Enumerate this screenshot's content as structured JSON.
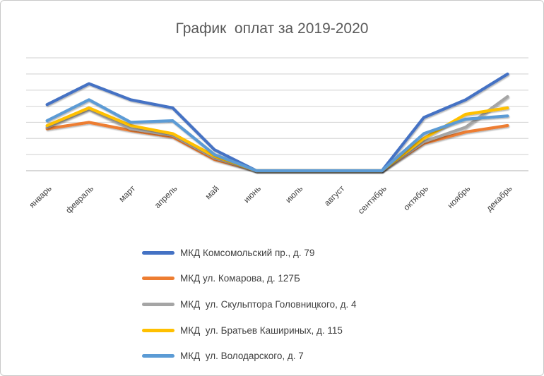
{
  "frame": {
    "background": "#ffffff",
    "border_color": "#c9c9c9"
  },
  "chart_data": {
    "type": "line",
    "title": "График  оплат за 2019-2020",
    "title_color": "#595959",
    "categories": [
      "январь",
      "февраль",
      "март",
      "апрель",
      "май",
      "июнь",
      "июль",
      "август",
      "сентябрь",
      "октябрь",
      "ноябрь",
      "декабрь"
    ],
    "series": [
      {
        "name": "МКД Комсомольский пр., д. 79",
        "color": "#4472C4",
        "values": [
          4.1,
          5.4,
          4.4,
          3.9,
          1.3,
          0,
          0,
          0,
          0,
          3.3,
          4.4,
          6.0
        ]
      },
      {
        "name": "МКД ул. Комарова, д. 127Б",
        "color": "#ED7D31",
        "values": [
          2.6,
          3.0,
          2.5,
          2.1,
          0.7,
          0,
          0,
          0,
          0,
          1.7,
          2.4,
          2.8
        ]
      },
      {
        "name": "МКД  ул. Скульптора Головницкого, д. 4",
        "color": "#A5A5A5",
        "values": [
          2.7,
          3.8,
          2.6,
          2.2,
          0.8,
          0,
          0,
          0,
          0,
          1.8,
          2.7,
          4.6
        ]
      },
      {
        "name": "МКД  ул. Братьев Кашириных, д. 115",
        "color": "#FFC000",
        "values": [
          2.8,
          3.9,
          2.8,
          2.3,
          0.9,
          0,
          0,
          0,
          0,
          2.0,
          3.5,
          3.9
        ]
      },
      {
        "name": "МКД  ул. Володарского, д. 7",
        "color": "#5B9BD5",
        "values": [
          3.1,
          4.4,
          3.0,
          3.1,
          1.0,
          0,
          0,
          0,
          0,
          2.3,
          3.2,
          3.4
        ]
      }
    ],
    "ylim": [
      0,
      7
    ],
    "y_axis_labels_visible": false,
    "gridlines": "horizontal, 1 unit apart",
    "gridline_color": "#d9d9d9",
    "axis_line_color": "#c0c0c0",
    "axis_label_color": "#3f3f3f",
    "legend_text_color": "#404040",
    "legend_position": "bottom-left-column"
  }
}
